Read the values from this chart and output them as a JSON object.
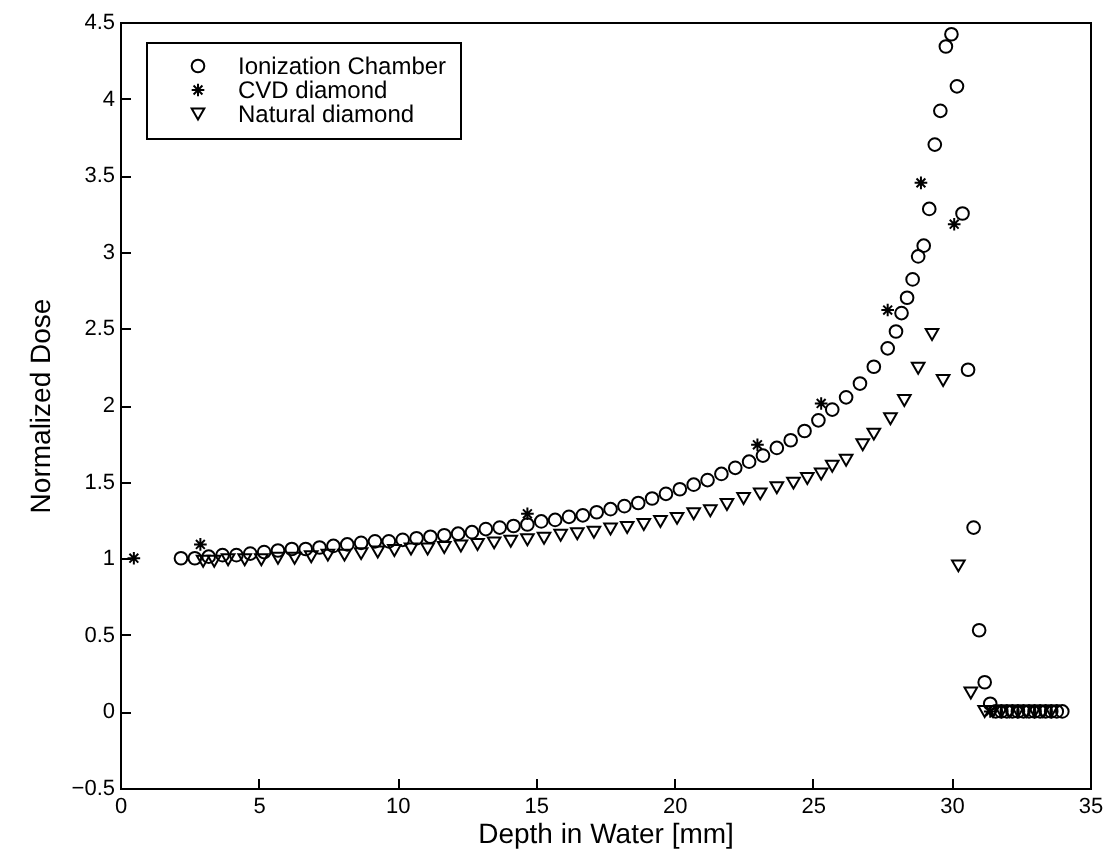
{
  "chart_data": {
    "type": "scatter",
    "xlabel": "Depth in Water [mm]",
    "ylabel": "Normalized Dose",
    "xlim": [
      0,
      35
    ],
    "xticks": [
      0,
      5,
      10,
      15,
      20,
      25,
      30,
      35
    ],
    "ylim": [
      -0.5,
      4.5
    ],
    "yticks": [
      -0.5,
      0,
      0.5,
      1,
      1.5,
      2,
      2.5,
      3,
      3.5,
      4,
      4.5
    ],
    "grid": false,
    "legend": "top left",
    "series": [
      {
        "name": "Ionization Chamber",
        "color": "#000000",
        "marker": "circle",
        "x": [
          2.2,
          2.7,
          3.2,
          3.7,
          4.2,
          4.7,
          5.2,
          5.7,
          6.2,
          6.7,
          7.2,
          7.7,
          8.2,
          8.7,
          9.2,
          9.7,
          10.2,
          10.7,
          11.2,
          11.7,
          12.2,
          12.7,
          13.2,
          13.7,
          14.2,
          14.7,
          15.2,
          15.7,
          16.2,
          16.7,
          17.2,
          17.7,
          18.2,
          18.7,
          19.2,
          19.7,
          20.2,
          20.7,
          21.2,
          21.7,
          22.2,
          22.7,
          23.2,
          23.7,
          24.2,
          24.7,
          25.2,
          25.7,
          26.2,
          26.7,
          27.2,
          27.7,
          28.0,
          28.2,
          28.4,
          28.6,
          28.8,
          29.0,
          29.2,
          29.4,
          29.6,
          29.8,
          30.0,
          30.2,
          30.4,
          30.6,
          30.8,
          31.0,
          31.2,
          31.4,
          31.6,
          31.8,
          32.0,
          32.2,
          32.4,
          32.6,
          32.8,
          33.0,
          33.2,
          33.4,
          33.6,
          33.8,
          34.0
        ],
        "values": [
          1.0,
          1.0,
          1.01,
          1.02,
          1.02,
          1.03,
          1.04,
          1.05,
          1.06,
          1.06,
          1.07,
          1.08,
          1.09,
          1.1,
          1.11,
          1.11,
          1.12,
          1.13,
          1.14,
          1.15,
          1.16,
          1.17,
          1.19,
          1.2,
          1.21,
          1.22,
          1.24,
          1.25,
          1.27,
          1.28,
          1.3,
          1.32,
          1.34,
          1.36,
          1.39,
          1.42,
          1.45,
          1.48,
          1.51,
          1.55,
          1.59,
          1.63,
          1.67,
          1.72,
          1.77,
          1.83,
          1.9,
          1.97,
          2.05,
          2.14,
          2.25,
          2.37,
          2.48,
          2.6,
          2.7,
          2.82,
          2.97,
          3.04,
          3.28,
          3.7,
          3.92,
          4.34,
          4.42,
          4.08,
          3.25,
          2.23,
          1.2,
          0.53,
          0.19,
          0.05,
          0,
          0,
          0,
          0,
          0,
          0,
          0,
          0,
          0,
          0,
          0,
          0,
          0
        ]
      },
      {
        "name": "CVD diamond",
        "color": "#000000",
        "marker": "cross",
        "x": [
          0.5,
          2.9,
          14.7,
          23.0,
          25.3,
          27.7,
          28.9,
          30.1,
          31.4
        ],
        "values": [
          1.0,
          1.09,
          1.29,
          1.74,
          2.01,
          2.62,
          3.45,
          3.18,
          0
        ]
      },
      {
        "name": "Natural diamond",
        "color": "#000000",
        "marker": "triangle",
        "x": [
          3.0,
          3.4,
          3.9,
          4.5,
          5.1,
          5.7,
          6.3,
          6.9,
          7.5,
          8.1,
          8.7,
          9.3,
          9.9,
          10.5,
          11.1,
          11.7,
          12.3,
          12.9,
          13.5,
          14.1,
          14.7,
          15.3,
          15.9,
          16.5,
          17.1,
          17.7,
          18.3,
          18.9,
          19.5,
          20.1,
          20.7,
          21.3,
          21.9,
          22.5,
          23.1,
          23.7,
          24.3,
          24.8,
          25.3,
          25.7,
          26.2,
          26.8,
          27.2,
          27.8,
          28.3,
          28.8,
          29.3,
          29.7,
          30.25,
          30.7,
          31.2,
          31.5,
          31.8,
          32.1,
          32.4,
          32.7,
          33.0,
          33.3,
          33.6
        ],
        "values": [
          0.98,
          0.98,
          0.99,
          0.99,
          0.99,
          1.0,
          1.0,
          1.01,
          1.02,
          1.02,
          1.03,
          1.04,
          1.05,
          1.06,
          1.06,
          1.07,
          1.08,
          1.09,
          1.1,
          1.11,
          1.12,
          1.13,
          1.15,
          1.16,
          1.17,
          1.19,
          1.2,
          1.22,
          1.24,
          1.26,
          1.29,
          1.31,
          1.35,
          1.39,
          1.42,
          1.46,
          1.49,
          1.52,
          1.55,
          1.6,
          1.64,
          1.74,
          1.81,
          1.91,
          2.03,
          2.24,
          2.46,
          2.16,
          0.95,
          0.12,
          0,
          0,
          0,
          0,
          0,
          0,
          0,
          0,
          0
        ]
      }
    ]
  }
}
